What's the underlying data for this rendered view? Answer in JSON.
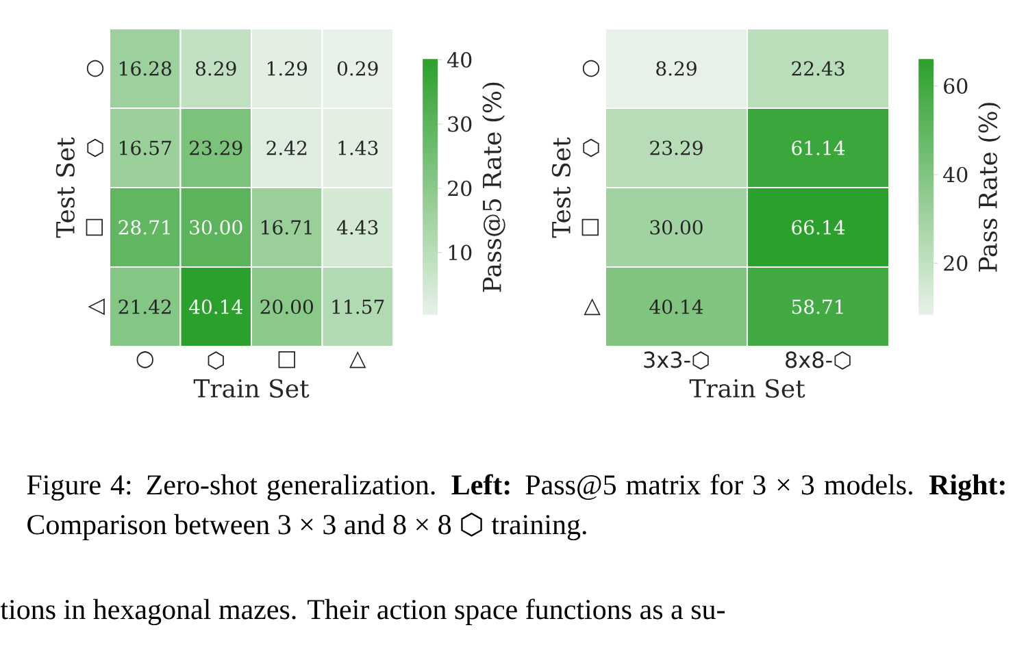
{
  "chart_data": [
    {
      "type": "heatmap",
      "categories": [
        "○",
        "⬡",
        "□",
        "△"
      ],
      "y_categories": [
        "○",
        "⬡",
        "□",
        "◁"
      ],
      "cells": [
        [
          16.28,
          8.29,
          1.29,
          0.29
        ],
        [
          16.57,
          23.29,
          2.42,
          1.43
        ],
        [
          28.71,
          30.0,
          16.71,
          4.43
        ],
        [
          21.42,
          40.14,
          20.0,
          11.57
        ]
      ],
      "cell_labels": [
        [
          "16.28",
          "8.29",
          "1.29",
          "0.29"
        ],
        [
          "16.57",
          "23.29",
          "2.42",
          "1.43"
        ],
        [
          "28.71",
          "30.00",
          "16.71",
          "4.43"
        ],
        [
          "21.42",
          "40.14",
          "20.00",
          "11.57"
        ]
      ],
      "clim": [
        0.29,
        40.14
      ],
      "cticks": [
        10,
        20,
        30,
        40
      ],
      "xlabel": "Train Set",
      "ylabel": "Test Set",
      "clabel": "Pass@5 Rate (%)",
      "annotations": [
        "Figure 4: Zero-shot generalization. **Left:** Pass@5 matrix for 3 × 3 models. **Right:** Comparison between 3 × 3 and 8 × 8 ⬡ training.",
        "tions in hexagonal mazes. Their action space functions as a su-"
      ]
    },
    {
      "type": "heatmap",
      "categories": [
        "3x3-⬡",
        "8x8-⬡"
      ],
      "y_categories": [
        "○",
        "⬡",
        "□",
        "△"
      ],
      "cells": [
        [
          8.29,
          22.43
        ],
        [
          23.29,
          61.14
        ],
        [
          30.0,
          66.14
        ],
        [
          40.14,
          58.71
        ]
      ],
      "cell_labels": [
        [
          "8.29",
          "22.43"
        ],
        [
          "23.29",
          "61.14"
        ],
        [
          "30.00",
          "66.14"
        ],
        [
          "40.14",
          "58.71"
        ]
      ],
      "clim": [
        8.29,
        66.14
      ],
      "cticks": [
        20,
        40,
        60
      ],
      "xlabel": "Train Set",
      "ylabel": "Test Set",
      "clabel": "Pass Rate (%)"
    }
  ]
}
